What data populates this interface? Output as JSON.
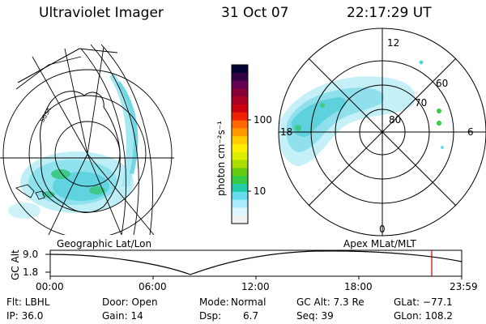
{
  "header": {
    "instrument": "Ultraviolet Imager",
    "date": "31 Oct 07",
    "time": "22:17:29 UT"
  },
  "colorbar": {
    "unit_label": "photon cm⁻²s⁻¹",
    "ticks": [
      "100",
      "10"
    ],
    "colors": [
      "#000033",
      "#330044",
      "#660055",
      "#880033",
      "#aa0022",
      "#cc0011",
      "#ee2200",
      "#ff6600",
      "#ff9900",
      "#ffcc00",
      "#ffee00",
      "#ddee00",
      "#aadd00",
      "#66cc11",
      "#33cc44",
      "#22ccaa",
      "#66ddee",
      "#aaeeff",
      "#ddf5ff",
      "#f0f0f0"
    ]
  },
  "right_panel": {
    "lat_labels": [
      "60",
      "70",
      "80"
    ],
    "mlt_labels": {
      "top": "12",
      "left": "18",
      "right": "6",
      "bottom": "0"
    }
  },
  "left_panel": {
    "caption": "Geographic Lat/Lon",
    "map_annotation": "SGSA"
  },
  "altitude_strip": {
    "axis_label": "GC Alt",
    "y_ticks": [
      "9.0",
      "1.8"
    ],
    "right_caption": "Apex MLat/MLT",
    "x_ticks": [
      "00:00",
      "06:00",
      "12:00",
      "18:00",
      "23:59"
    ],
    "marker_color": "#cc0000"
  },
  "info": {
    "filter": "Flt: LBHL",
    "ip": "IP: 36.0",
    "door": "Door: Open",
    "gain": "Gain: 14",
    "mode_label": "Mode:",
    "mode_value": "Normal",
    "dsp_label": "Dsp:",
    "dsp_value": "6.7",
    "gc_alt": "GC Alt: 7.3 Re",
    "seq": "Seq: 39",
    "glat": "GLat: −77.1",
    "glon": "GLon: 108.2"
  }
}
